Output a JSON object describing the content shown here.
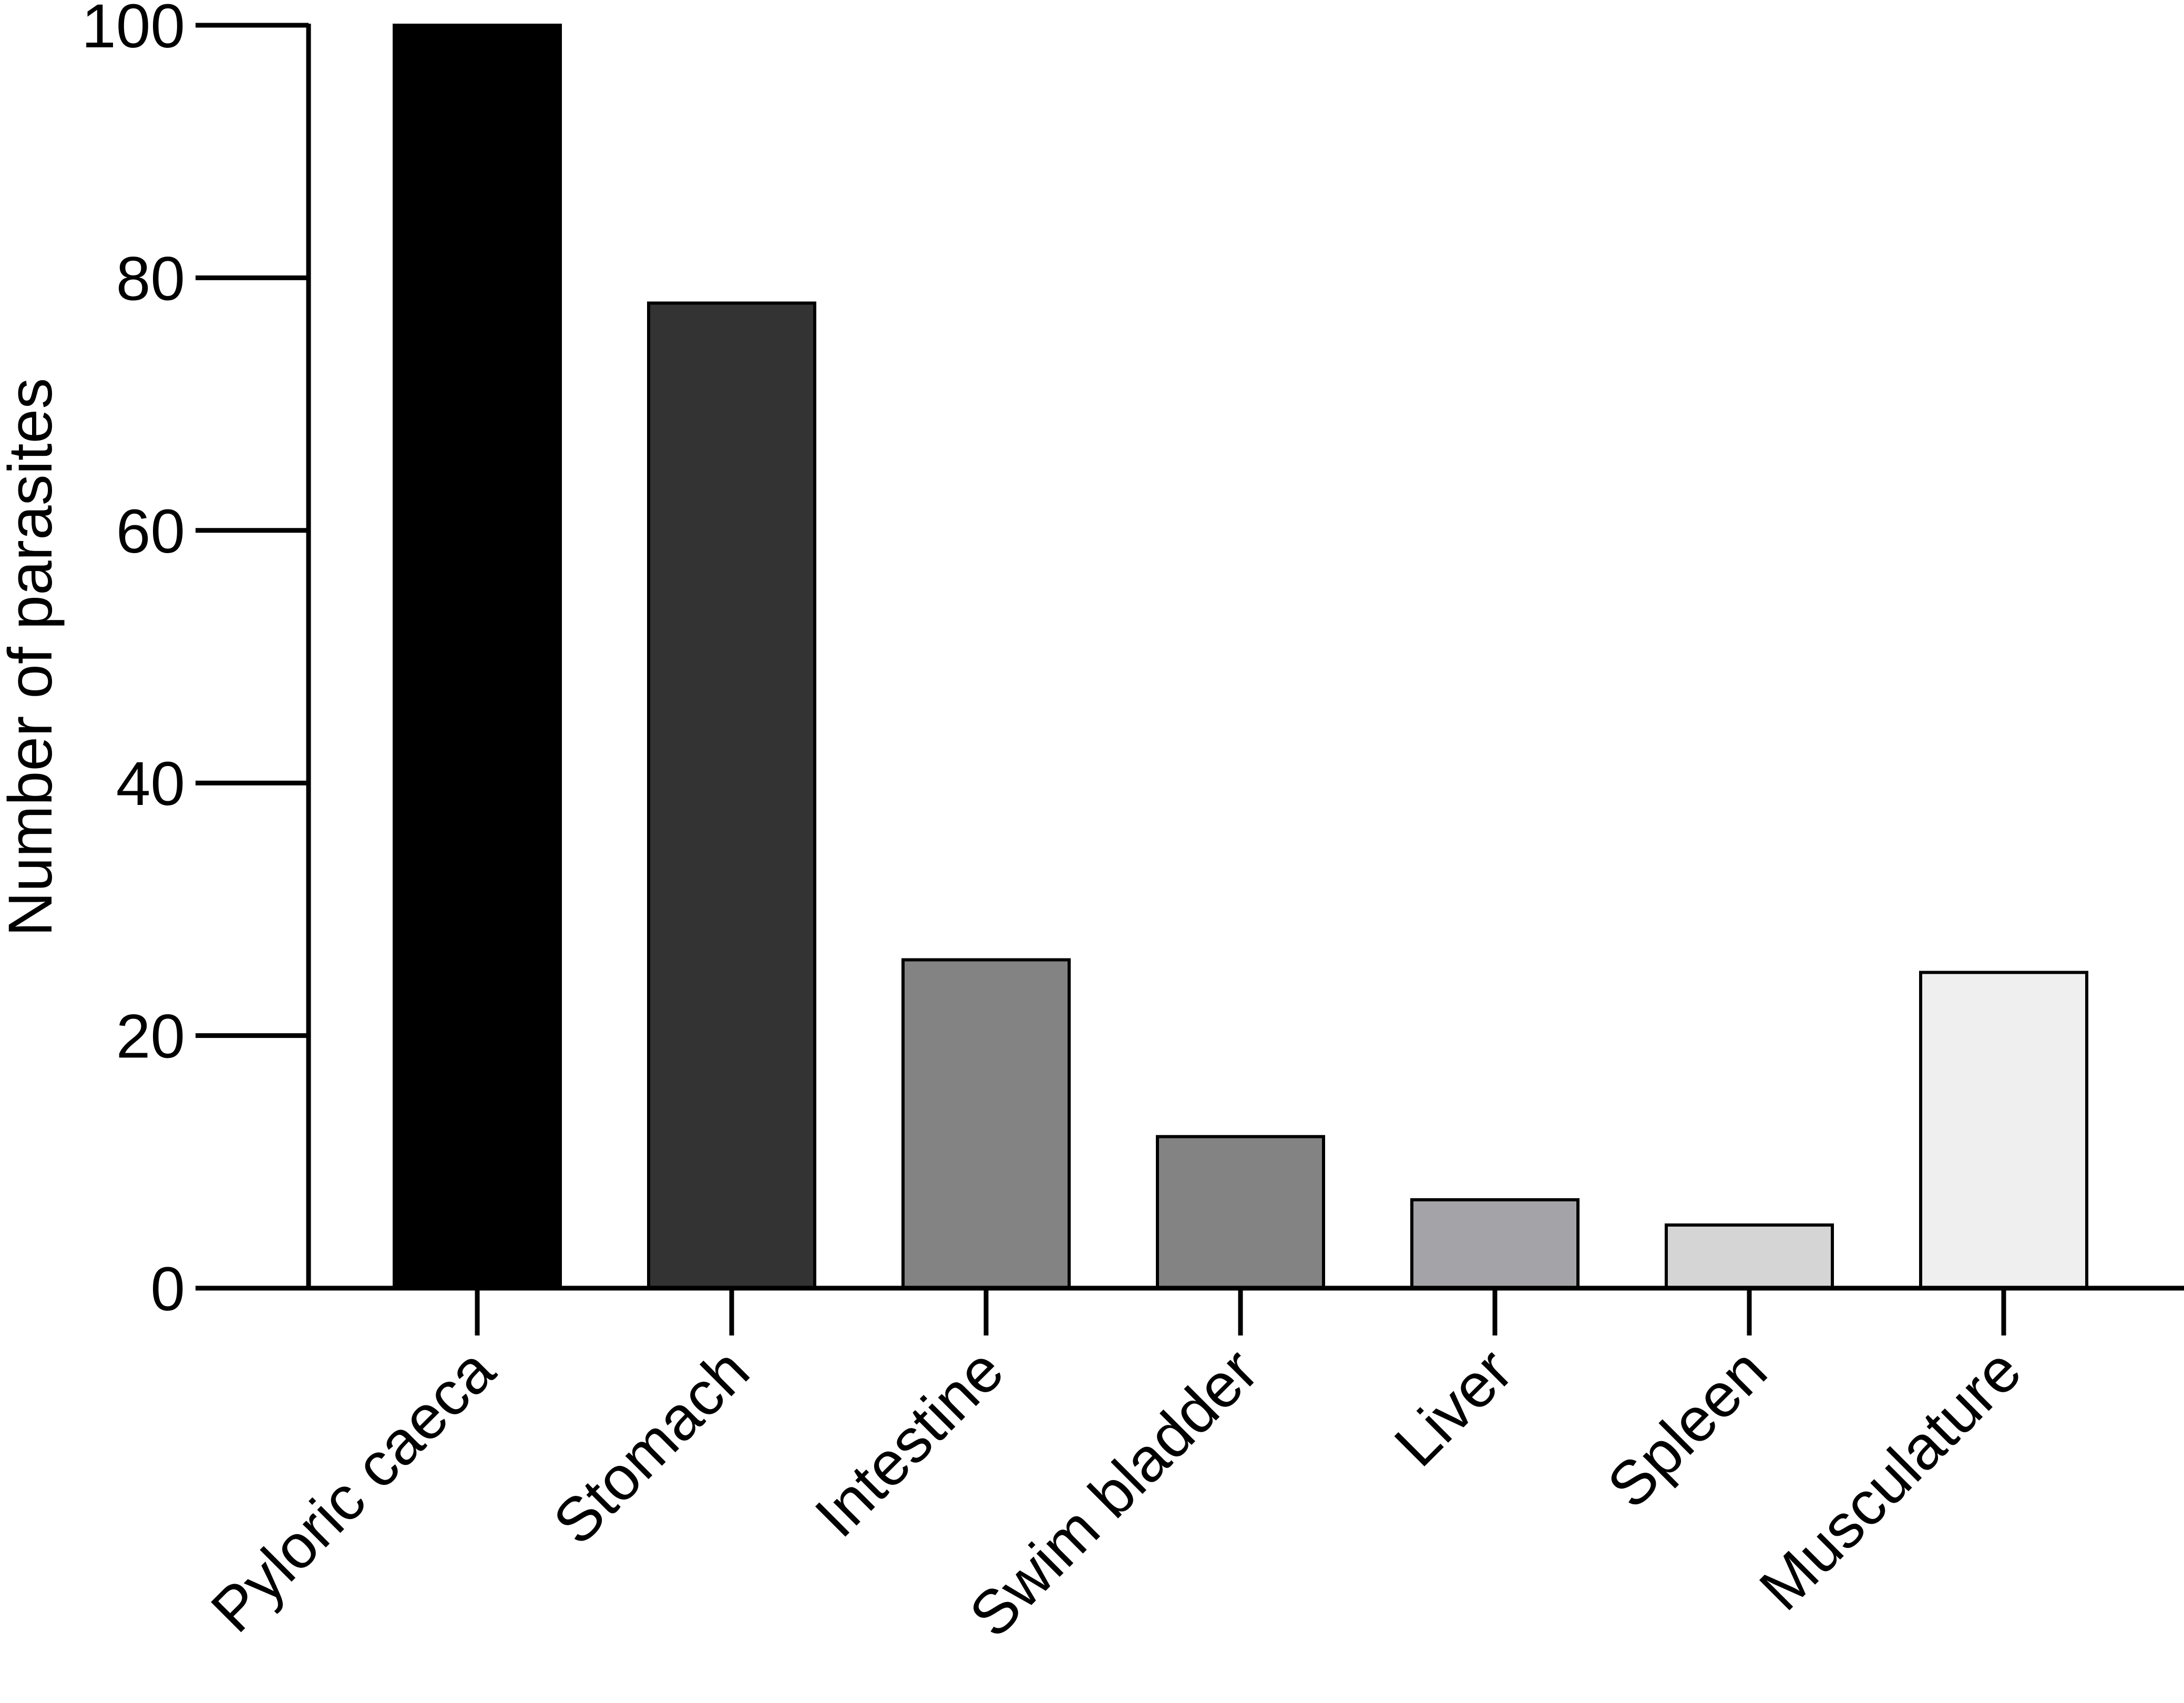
{
  "chart_data": {
    "type": "bar",
    "title": "",
    "xlabel": "",
    "ylabel": "Number of parasites",
    "ylim": [
      0,
      100
    ],
    "yticks": [
      "0",
      "20",
      "40",
      "60",
      "80",
      "100"
    ],
    "grid": false,
    "categories": [
      "Pyloric caeca",
      "Stomach",
      "Intestine",
      "Swim bladder",
      "Liver",
      "Spleen",
      "Musculature"
    ],
    "values": [
      100,
      78,
      26,
      12,
      7,
      5,
      25
    ],
    "colors": [
      "#000000",
      "#333333",
      "#838383",
      "#838383",
      "#a4a3a7",
      "#d5d5d5",
      "#efefef"
    ]
  }
}
